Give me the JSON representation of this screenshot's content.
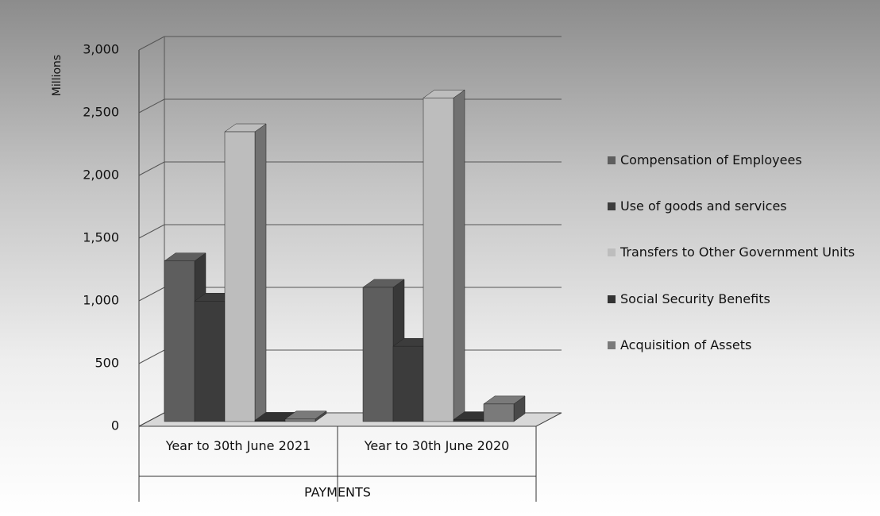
{
  "chart_data": {
    "type": "bar3d",
    "y_label": "Millions",
    "x_label": "PAYMENTS",
    "categories": [
      "Year to 30th June 2021",
      "Year to 30th June 2020"
    ],
    "series": [
      {
        "name": "Compensation of Employees",
        "color": "#5e5e5e",
        "values": [
          1280,
          1070
        ]
      },
      {
        "name": "Use of goods and services",
        "color": "#3c3c3c",
        "values": [
          960,
          600
        ]
      },
      {
        "name": "Transfers to Other Government Units",
        "color": "#bdbdbd",
        "values": [
          2310,
          2580
        ]
      },
      {
        "name": "Social Security Benefits",
        "color": "#333333",
        "values": [
          10,
          15
        ]
      },
      {
        "name": "Acquisition of Assets",
        "color": "#7a7a7a",
        "values": [
          20,
          140
        ]
      }
    ],
    "ylim": [
      0,
      3000
    ],
    "yticks": [
      0,
      500,
      {
        "value": 1000,
        "label": "1,000"
      },
      {
        "value": 1500,
        "label": "1,500"
      },
      {
        "value": 2000,
        "label": "2,000"
      },
      {
        "value": 2500,
        "label": "2,500"
      },
      {
        "value": 3000,
        "label": "3,000"
      }
    ],
    "grid": true,
    "legend": "right"
  }
}
